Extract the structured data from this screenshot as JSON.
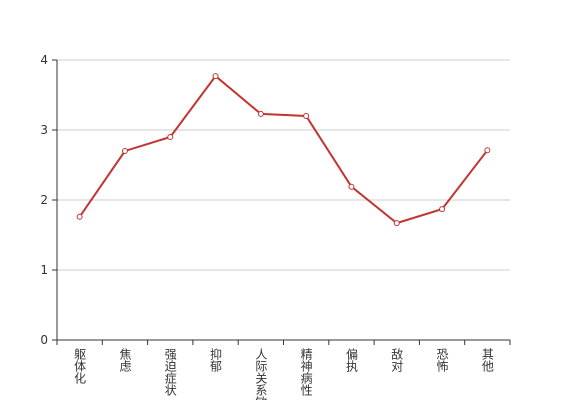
{
  "chart_data": {
    "type": "line",
    "categories": [
      "躯体化",
      "焦虑",
      "强迫症状",
      "抑郁",
      "人际关系敏感",
      "精神病性",
      "偏执",
      "敌对",
      "恐怖",
      "其他"
    ],
    "values": [
      1.76,
      2.7,
      2.9,
      3.77,
      3.23,
      3.2,
      2.19,
      1.67,
      1.87,
      2.71
    ],
    "color": "#c23531",
    "ylim": [
      0,
      4
    ],
    "yticks": [
      0,
      1,
      2,
      3,
      4
    ],
    "grid": true
  }
}
